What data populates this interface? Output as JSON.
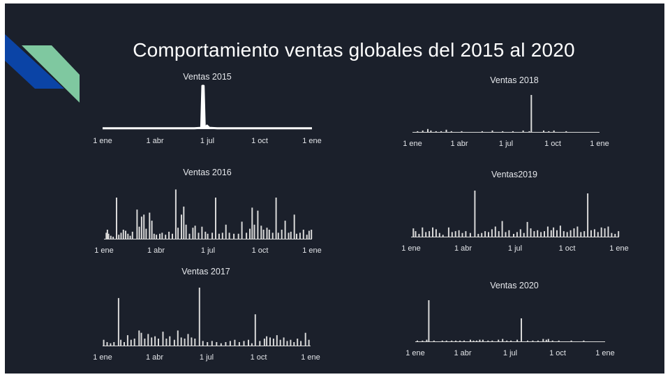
{
  "page": {
    "title": "Comportamiento ventas globales del 2015 al 2020",
    "colors": {
      "background": "#1b202b",
      "accent_blue": "#0b44a6",
      "accent_green": "#7fc8a0",
      "bars": "#d9d9d9"
    }
  },
  "chart_data": [
    {
      "id": "2015",
      "type": "area",
      "title": "Ventas 2015",
      "x_ticks": [
        "1 ene",
        "1 abr",
        "1 jul",
        "1 oct",
        "1 ene"
      ],
      "xlim": [
        0,
        365
      ],
      "ylim": [
        0,
        100
      ],
      "points": [
        [
          0,
          2
        ],
        [
          20,
          2
        ],
        [
          40,
          2
        ],
        [
          60,
          2
        ],
        [
          80,
          2
        ],
        [
          100,
          2
        ],
        [
          120,
          2
        ],
        [
          140,
          2
        ],
        [
          160,
          2
        ],
        [
          172,
          3
        ],
        [
          174,
          100
        ],
        [
          176,
          100
        ],
        [
          178,
          3
        ],
        [
          182,
          8
        ],
        [
          186,
          3
        ],
        [
          200,
          2
        ],
        [
          220,
          2
        ],
        [
          240,
          2
        ],
        [
          260,
          2
        ],
        [
          280,
          2
        ],
        [
          300,
          2
        ],
        [
          320,
          2
        ],
        [
          340,
          2
        ],
        [
          365,
          2
        ]
      ]
    },
    {
      "id": "2016",
      "type": "bar",
      "title": "Ventas 2016",
      "x_ticks": [
        "1 ene",
        "1 abr",
        "1 jul",
        "1 oct",
        "1 ene"
      ],
      "xlim": [
        0,
        365
      ],
      "ylim": [
        0,
        100
      ],
      "bars": [
        [
          4,
          12
        ],
        [
          6,
          18
        ],
        [
          8,
          10
        ],
        [
          12,
          6
        ],
        [
          16,
          4
        ],
        [
          22,
          82
        ],
        [
          26,
          8
        ],
        [
          30,
          12
        ],
        [
          34,
          18
        ],
        [
          38,
          16
        ],
        [
          42,
          10
        ],
        [
          46,
          6
        ],
        [
          50,
          14
        ],
        [
          58,
          58
        ],
        [
          62,
          24
        ],
        [
          66,
          44
        ],
        [
          70,
          48
        ],
        [
          74,
          20
        ],
        [
          80,
          52
        ],
        [
          84,
          36
        ],
        [
          88,
          10
        ],
        [
          92,
          8
        ],
        [
          98,
          10
        ],
        [
          102,
          12
        ],
        [
          108,
          8
        ],
        [
          114,
          14
        ],
        [
          120,
          10
        ],
        [
          126,
          98
        ],
        [
          130,
          22
        ],
        [
          136,
          48
        ],
        [
          140,
          64
        ],
        [
          144,
          28
        ],
        [
          150,
          10
        ],
        [
          156,
          22
        ],
        [
          160,
          26
        ],
        [
          166,
          12
        ],
        [
          172,
          24
        ],
        [
          178,
          14
        ],
        [
          182,
          10
        ],
        [
          190,
          12
        ],
        [
          196,
          82
        ],
        [
          202,
          10
        ],
        [
          208,
          12
        ],
        [
          214,
          28
        ],
        [
          220,
          12
        ],
        [
          228,
          10
        ],
        [
          236,
          10
        ],
        [
          242,
          34
        ],
        [
          250,
          12
        ],
        [
          256,
          20
        ],
        [
          260,
          62
        ],
        [
          264,
          28
        ],
        [
          270,
          56
        ],
        [
          276,
          26
        ],
        [
          280,
          18
        ],
        [
          286,
          22
        ],
        [
          290,
          18
        ],
        [
          296,
          12
        ],
        [
          302,
          82
        ],
        [
          306,
          12
        ],
        [
          312,
          18
        ],
        [
          318,
          36
        ],
        [
          324,
          12
        ],
        [
          328,
          14
        ],
        [
          334,
          48
        ],
        [
          338,
          10
        ],
        [
          344,
          12
        ],
        [
          350,
          18
        ],
        [
          356,
          8
        ],
        [
          360,
          16
        ],
        [
          364,
          18
        ]
      ]
    },
    {
      "id": "2017",
      "type": "bar",
      "title": "Ventas 2017",
      "x_ticks": [
        "1 ene",
        "1 abr",
        "1 jul",
        "1 oct",
        "1 ene"
      ],
      "xlim": [
        0,
        365
      ],
      "ylim": [
        0,
        100
      ],
      "bars": [
        [
          2,
          10
        ],
        [
          8,
          6
        ],
        [
          14,
          4
        ],
        [
          20,
          6
        ],
        [
          28,
          82
        ],
        [
          32,
          10
        ],
        [
          38,
          6
        ],
        [
          44,
          18
        ],
        [
          50,
          10
        ],
        [
          56,
          12
        ],
        [
          64,
          26
        ],
        [
          68,
          22
        ],
        [
          74,
          12
        ],
        [
          80,
          20
        ],
        [
          86,
          14
        ],
        [
          92,
          16
        ],
        [
          98,
          12
        ],
        [
          106,
          24
        ],
        [
          112,
          12
        ],
        [
          118,
          16
        ],
        [
          126,
          10
        ],
        [
          132,
          26
        ],
        [
          138,
          14
        ],
        [
          144,
          12
        ],
        [
          150,
          20
        ],
        [
          156,
          14
        ],
        [
          162,
          12
        ],
        [
          170,
          100
        ],
        [
          176,
          8
        ],
        [
          184,
          6
        ],
        [
          192,
          8
        ],
        [
          200,
          6
        ],
        [
          208,
          4
        ],
        [
          216,
          6
        ],
        [
          224,
          8
        ],
        [
          232,
          10
        ],
        [
          240,
          6
        ],
        [
          248,
          8
        ],
        [
          256,
          10
        ],
        [
          262,
          4
        ],
        [
          268,
          54
        ],
        [
          276,
          8
        ],
        [
          284,
          12
        ],
        [
          288,
          16
        ],
        [
          294,
          14
        ],
        [
          300,
          12
        ],
        [
          306,
          18
        ],
        [
          312,
          10
        ],
        [
          318,
          14
        ],
        [
          324,
          8
        ],
        [
          330,
          10
        ],
        [
          336,
          6
        ],
        [
          342,
          12
        ],
        [
          348,
          8
        ],
        [
          356,
          22
        ],
        [
          362,
          10
        ]
      ]
    },
    {
      "id": "2018",
      "type": "bar",
      "title": "Ventas 2018",
      "x_ticks": [
        "1 ene",
        "1 abr",
        "1 jul",
        "1 oct",
        "1 ene"
      ],
      "xlim": [
        0,
        365
      ],
      "ylim": [
        0,
        100
      ],
      "bars": [
        [
          10,
          2
        ],
        [
          20,
          4
        ],
        [
          30,
          8
        ],
        [
          36,
          4
        ],
        [
          46,
          2
        ],
        [
          56,
          2
        ],
        [
          66,
          6
        ],
        [
          76,
          2
        ],
        [
          96,
          2
        ],
        [
          136,
          2
        ],
        [
          156,
          4
        ],
        [
          176,
          2
        ],
        [
          196,
          2
        ],
        [
          216,
          4
        ],
        [
          228,
          2
        ],
        [
          232,
          100
        ],
        [
          256,
          4
        ],
        [
          266,
          2
        ],
        [
          276,
          4
        ],
        [
          300,
          2
        ]
      ]
    },
    {
      "id": "2019",
      "type": "bar",
      "title": "Ventas2019",
      "x_ticks": [
        "1 ene",
        "1 abr",
        "1 jul",
        "1 oct",
        "1 ene"
      ],
      "xlim": [
        0,
        365
      ],
      "ylim": [
        0,
        100
      ],
      "bars": [
        [
          4,
          18
        ],
        [
          8,
          12
        ],
        [
          14,
          6
        ],
        [
          20,
          20
        ],
        [
          26,
          10
        ],
        [
          32,
          12
        ],
        [
          38,
          20
        ],
        [
          44,
          16
        ],
        [
          50,
          8
        ],
        [
          56,
          4
        ],
        [
          66,
          20
        ],
        [
          72,
          10
        ],
        [
          78,
          12
        ],
        [
          84,
          14
        ],
        [
          90,
          8
        ],
        [
          96,
          12
        ],
        [
          104,
          8
        ],
        [
          112,
          100
        ],
        [
          118,
          6
        ],
        [
          124,
          8
        ],
        [
          130,
          12
        ],
        [
          136,
          10
        ],
        [
          142,
          16
        ],
        [
          148,
          22
        ],
        [
          154,
          12
        ],
        [
          160,
          34
        ],
        [
          166,
          10
        ],
        [
          172,
          14
        ],
        [
          180,
          6
        ],
        [
          186,
          10
        ],
        [
          192,
          16
        ],
        [
          198,
          8
        ],
        [
          204,
          32
        ],
        [
          210,
          18
        ],
        [
          216,
          12
        ],
        [
          222,
          14
        ],
        [
          228,
          10
        ],
        [
          234,
          12
        ],
        [
          240,
          22
        ],
        [
          246,
          14
        ],
        [
          250,
          20
        ],
        [
          256,
          14
        ],
        [
          262,
          24
        ],
        [
          268,
          12
        ],
        [
          274,
          10
        ],
        [
          280,
          14
        ],
        [
          286,
          18
        ],
        [
          292,
          22
        ],
        [
          298,
          10
        ],
        [
          304,
          12
        ],
        [
          310,
          94
        ],
        [
          316,
          14
        ],
        [
          322,
          16
        ],
        [
          328,
          10
        ],
        [
          334,
          20
        ],
        [
          340,
          18
        ],
        [
          346,
          22
        ],
        [
          352,
          8
        ],
        [
          358,
          6
        ],
        [
          364,
          12
        ]
      ]
    },
    {
      "id": "2020",
      "type": "bar",
      "title": "Ventas 2020",
      "x_ticks": [
        "1 ene",
        "1 abr",
        "1 jul",
        "1 oct",
        "1 ene"
      ],
      "xlim": [
        0,
        365
      ],
      "ylim": [
        0,
        100
      ],
      "bars": [
        [
          4,
          2
        ],
        [
          14,
          2
        ],
        [
          22,
          4
        ],
        [
          26,
          100
        ],
        [
          36,
          2
        ],
        [
          52,
          2
        ],
        [
          60,
          2
        ],
        [
          70,
          2
        ],
        [
          78,
          2
        ],
        [
          86,
          2
        ],
        [
          94,
          2
        ],
        [
          106,
          4
        ],
        [
          112,
          2
        ],
        [
          118,
          2
        ],
        [
          124,
          4
        ],
        [
          130,
          4
        ],
        [
          140,
          2
        ],
        [
          148,
          2
        ],
        [
          160,
          4
        ],
        [
          168,
          6
        ],
        [
          176,
          2
        ],
        [
          184,
          2
        ],
        [
          196,
          4
        ],
        [
          204,
          56
        ],
        [
          216,
          2
        ],
        [
          226,
          2
        ],
        [
          236,
          2
        ],
        [
          246,
          6
        ],
        [
          252,
          4
        ],
        [
          256,
          6
        ],
        [
          264,
          2
        ],
        [
          276,
          2
        ],
        [
          300,
          2
        ],
        [
          324,
          2
        ]
      ]
    }
  ]
}
